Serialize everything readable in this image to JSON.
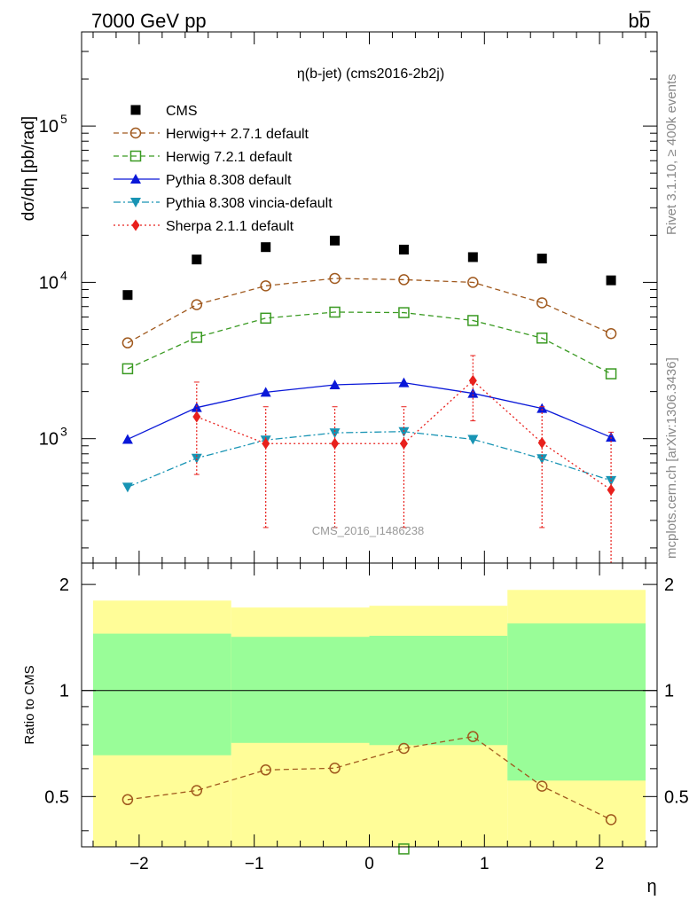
{
  "header": {
    "left": "7000 GeV pp",
    "right": "bb̅"
  },
  "side_texts": {
    "rivet": "Rivet 3.1.10, ≥ 400k events",
    "mcplots": "mcplots.cern.ch [arXiv:1306.3436]"
  },
  "chart_data": [
    {
      "type": "line",
      "title": "η(b-jet) (cms2016-2b2j)",
      "watermark": "CMS_2016_I1486238",
      "xlabel": "",
      "ylabel": "dσ/dη [pb/rad]",
      "xlim": [
        -2.5,
        2.5
      ],
      "ylim": [
        160,
        400000
      ],
      "yscale": "log",
      "x": [
        -2.1,
        -1.5,
        -0.9,
        -0.3,
        0.3,
        0.9,
        1.5,
        2.1
      ],
      "x_ticks": [
        -2,
        -1,
        0,
        1,
        2
      ],
      "y_tick_labels": [
        {
          "value": 1000,
          "base": "10",
          "exp": "3"
        },
        {
          "value": 10000,
          "base": "10",
          "exp": "4"
        },
        {
          "value": 100000,
          "base": "10",
          "exp": "5"
        }
      ],
      "legend_placement": "top-left",
      "series": [
        {
          "name": "CMS",
          "marker": "square-filled",
          "color": "#000000",
          "values": [
            8300,
            14000,
            16800,
            18500,
            16200,
            14500,
            14200,
            10300
          ]
        },
        {
          "name": "Herwig++ 2.7.1 default",
          "marker": "circle-open",
          "line": "dashed",
          "color": "#a0591e",
          "values": [
            4100,
            7200,
            9500,
            10600,
            10400,
            10000,
            7400,
            4700
          ]
        },
        {
          "name": "Herwig 7.2.1 default",
          "marker": "square-open",
          "line": "dashed",
          "color": "#3a9a22",
          "values": [
            2800,
            4450,
            5900,
            6450,
            6400,
            5700,
            4400,
            2600
          ]
        },
        {
          "name": "Pythia 8.308 default",
          "marker": "triangle-up",
          "line": "solid",
          "color": "#0a18d8",
          "values": [
            990,
            1580,
            1980,
            2210,
            2280,
            1950,
            1560,
            1020
          ]
        },
        {
          "name": "Pythia 8.308 vincia-default",
          "marker": "triangle-down",
          "line": "dashdot",
          "color": "#1894b4",
          "values": [
            490,
            750,
            980,
            1090,
            1110,
            990,
            745,
            540
          ]
        },
        {
          "name": "Sherpa 2.1.1 default",
          "marker": "diamond",
          "line": "dotted",
          "color": "#e8201c",
          "x": [
            -1.5,
            -0.9,
            -0.3,
            0.3,
            0.9,
            1.5,
            2.1
          ],
          "values": [
            1380,
            930,
            930,
            930,
            2350,
            940,
            470
          ],
          "err_low": [
            590,
            270,
            270,
            270,
            1300,
            270,
            160
          ],
          "err_high": [
            2300,
            1600,
            1600,
            1600,
            3400,
            1600,
            1100
          ]
        }
      ]
    },
    {
      "type": "line",
      "title": "",
      "xlabel": "η",
      "ylabel": "Ratio to CMS",
      "xlim": [
        -2.5,
        2.5
      ],
      "ylim": [
        0.36,
        2.3
      ],
      "yscale": "log",
      "x_ticks": [
        -2,
        -1,
        0,
        1,
        2
      ],
      "x_tick_labels": [
        "−2",
        "−1",
        "0",
        "1",
        "2"
      ],
      "y_ticks": [
        0.5,
        1,
        2
      ],
      "y_tick_labels": [
        "0.5",
        "1",
        "2"
      ],
      "bands": [
        {
          "x0": -2.4,
          "x1": -1.2,
          "yellow": [
            0.345,
            1.8
          ],
          "green": [
            0.655,
            1.45
          ]
        },
        {
          "x0": -1.2,
          "x1": 0.0,
          "yellow": [
            0.345,
            1.72
          ],
          "green": [
            0.71,
            1.42
          ]
        },
        {
          "x0": 0.0,
          "x1": 1.2,
          "yellow": [
            0.345,
            1.74
          ],
          "green": [
            0.7,
            1.43
          ]
        },
        {
          "x0": 1.2,
          "x1": 2.4,
          "yellow": [
            0.345,
            1.93
          ],
          "green": [
            0.555,
            1.55
          ]
        }
      ],
      "band_colors": {
        "yellow": "#fffd98",
        "green": "#99fd98"
      },
      "series": [
        {
          "name": "Herwig++ 2.7.1 default",
          "marker": "circle-open",
          "line": "dashed",
          "color": "#a0591e",
          "x": [
            -2.1,
            -1.5,
            -0.9,
            -0.3,
            0.3,
            0.9,
            1.5,
            2.1
          ],
          "values": [
            0.49,
            0.52,
            0.595,
            0.602,
            0.685,
            0.74,
            0.535,
            0.43
          ]
        },
        {
          "name": "Herwig 7.2.1 default",
          "marker": "square-open",
          "color": "#3a9a22",
          "x": [
            0.3
          ],
          "values": [
            0.355
          ]
        }
      ]
    }
  ]
}
